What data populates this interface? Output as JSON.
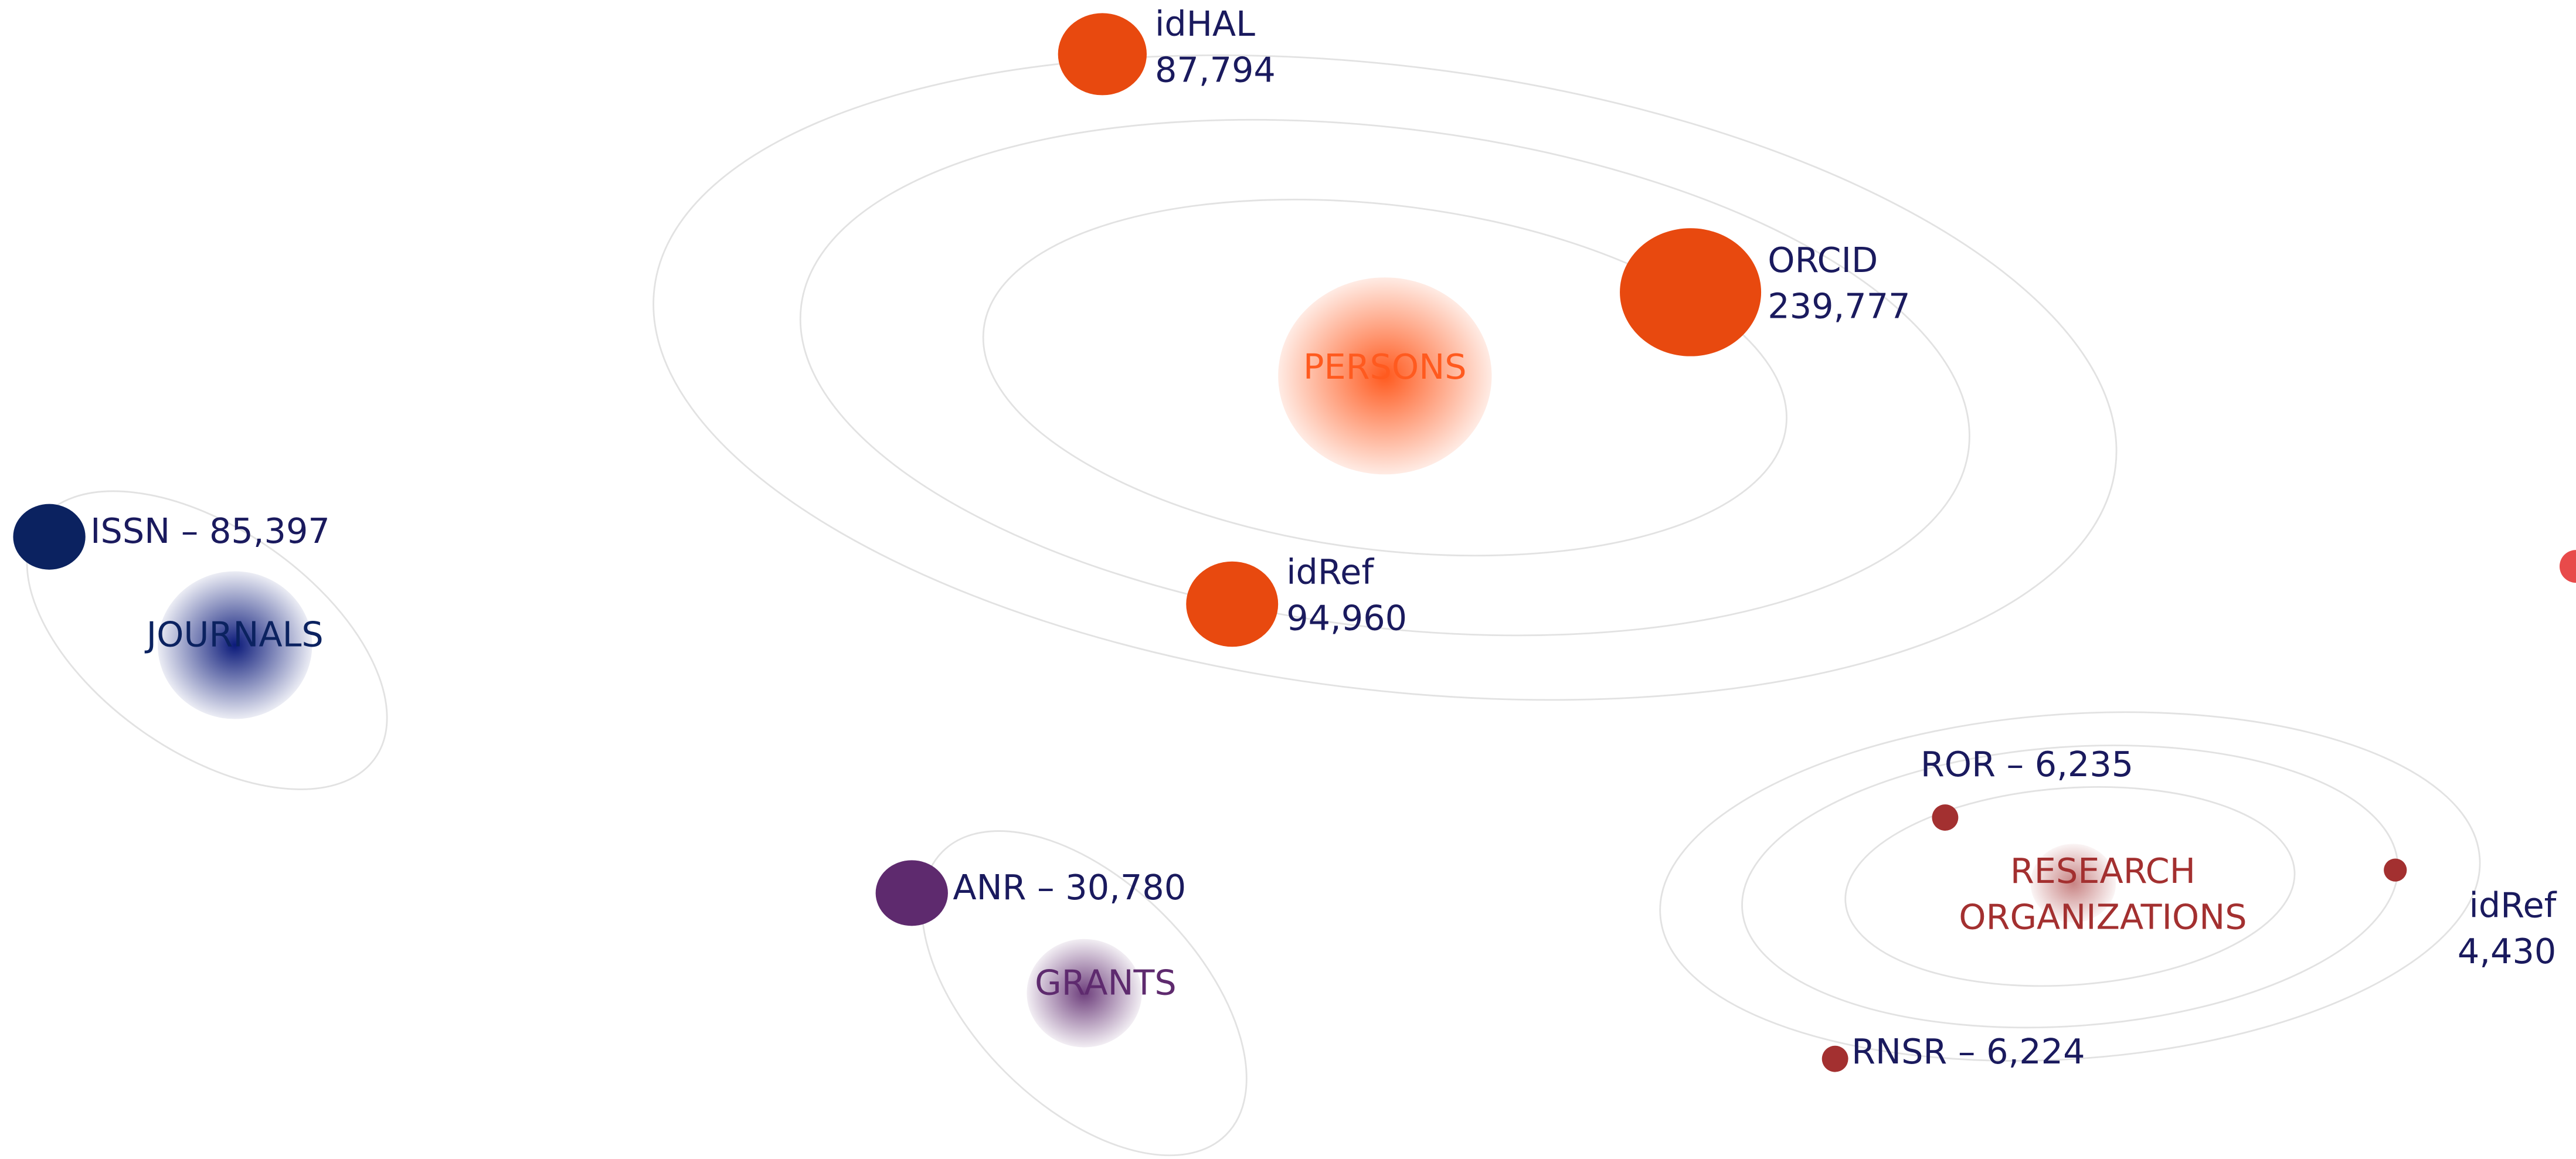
{
  "clusters": [
    {
      "label": [
        "PERSONS"
      ],
      "items": [
        {
          "lines": [
            "idHAL",
            "87,794"
          ]
        },
        {
          "lines": [
            "ORCID",
            "239,777"
          ]
        },
        {
          "lines": [
            "idRef",
            "94,960"
          ]
        }
      ]
    },
    {
      "label": [
        "JOURNALS"
      ],
      "items": [
        {
          "lines": [
            "ISSN – 85,397"
          ]
        }
      ]
    },
    {
      "label": [
        "GRANTS"
      ],
      "items": [
        {
          "lines": [
            "ANR – 30,780"
          ]
        }
      ]
    },
    {
      "label": [
        "RESEARCH",
        "ORGANIZATIONS"
      ],
      "items": [
        {
          "lines": [
            "ROR – 6,235"
          ]
        },
        {
          "lines": [
            "idRef",
            "4,430"
          ]
        },
        {
          "lines": [
            "RNSR – 6,224"
          ]
        }
      ]
    }
  ]
}
